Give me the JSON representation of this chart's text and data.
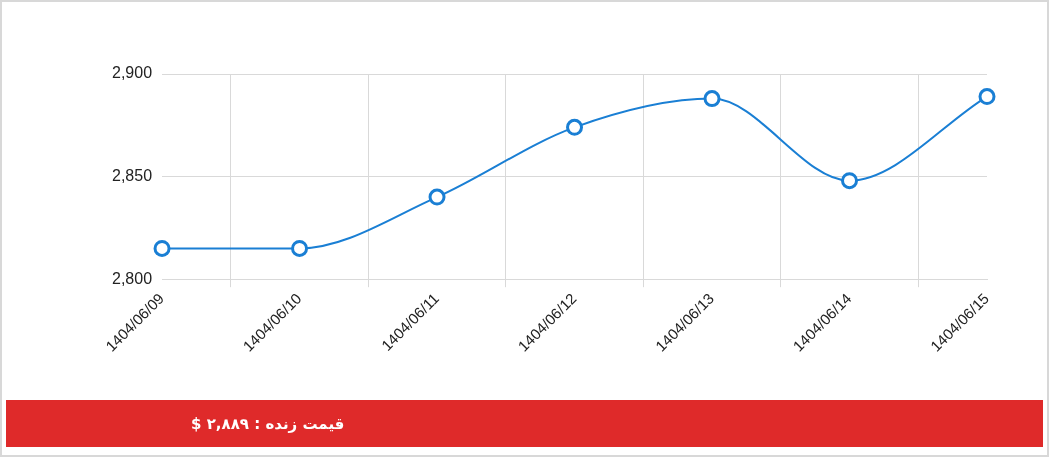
{
  "chart_data": {
    "type": "line",
    "categories": [
      "1404/06/09",
      "1404/06/10",
      "1404/06/11",
      "1404/06/12",
      "1404/06/13",
      "1404/06/14",
      "1404/06/15"
    ],
    "series": [
      {
        "color": "#1a7fd4",
        "values": [
          2815,
          2815,
          2840,
          2874,
          2888,
          2848,
          2889
        ]
      }
    ],
    "ylim": [
      2800,
      2900
    ],
    "yticks": [
      {
        "value": 2800,
        "label": "2,800"
      },
      {
        "value": 2850,
        "label": "2,850"
      },
      {
        "value": 2900,
        "label": "2,900"
      }
    ],
    "grid": true,
    "legend": false,
    "marker": "circle",
    "line_style": "solid",
    "annotations": [
      "قیمت زنده : ۲,۸۸۹ $"
    ]
  }
}
